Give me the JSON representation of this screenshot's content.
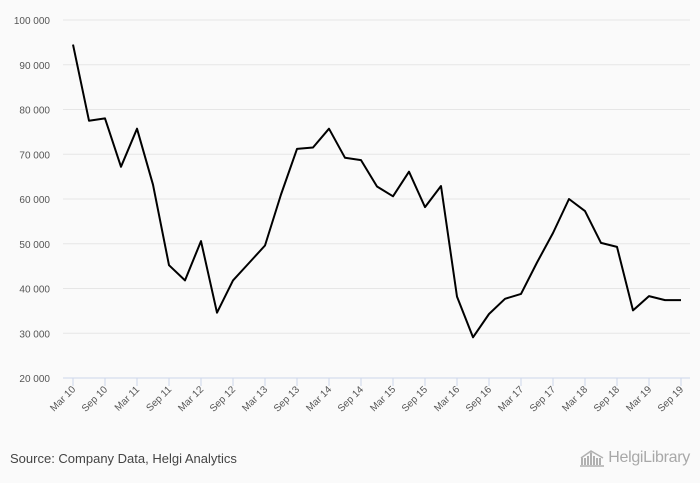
{
  "chart_data": {
    "type": "line",
    "title": "",
    "xlabel": "",
    "ylabel": "",
    "ylim": [
      20000,
      100000
    ],
    "yticks": [
      20000,
      30000,
      40000,
      50000,
      60000,
      70000,
      80000,
      90000,
      100000
    ],
    "ytick_labels": [
      "20 000",
      "30 000",
      "40 000",
      "50 000",
      "60 000",
      "70 000",
      "80 000",
      "90 000",
      "100 000"
    ],
    "x": [
      "Mar 10",
      "Jun 10",
      "Sep 10",
      "Dec 10",
      "Mar 11",
      "Jun 11",
      "Sep 11",
      "Dec 11",
      "Mar 12",
      "Jun 12",
      "Sep 12",
      "Dec 12",
      "Mar 13",
      "Jun 13",
      "Sep 13",
      "Dec 13",
      "Mar 14",
      "Jun 14",
      "Sep 14",
      "Dec 14",
      "Mar 15",
      "Jun 15",
      "Sep 15",
      "Dec 15",
      "Mar 16",
      "Jun 16",
      "Sep 16",
      "Dec 16",
      "Mar 17",
      "Jun 17",
      "Sep 17",
      "Dec 17",
      "Mar 18",
      "Jun 18",
      "Sep 18",
      "Dec 18",
      "Mar 19",
      "Jun 19",
      "Sep 19"
    ],
    "xtick_labels": [
      "Mar 10",
      "Sep 10",
      "Mar 11",
      "Sep 11",
      "Mar 12",
      "Sep 12",
      "Mar 13",
      "Sep 13",
      "Mar 14",
      "Sep 14",
      "Mar 15",
      "Sep 15",
      "Mar 16",
      "Sep 16",
      "Mar 17",
      "Sep 17",
      "Mar 18",
      "Sep 18",
      "Mar 19",
      "Sep 19"
    ],
    "series": [
      {
        "values": [
          94500,
          77500,
          78000,
          67200,
          75700,
          63200,
          45200,
          41800,
          50600,
          34600,
          41800,
          45700,
          49600,
          61000,
          71200,
          71500,
          75700,
          69200,
          68700,
          62800,
          60600,
          66100,
          58200,
          62900,
          38200,
          29100,
          34300,
          37700,
          38800,
          45800,
          52400,
          60000,
          57300,
          50200,
          49300,
          35100,
          38300,
          37400,
          37400
        ],
        "color": "#000000"
      }
    ],
    "grid": true,
    "legend": "none"
  },
  "footer": {
    "source": "Source: Company Data, Helgi Analytics",
    "brand": "HelgiLibrary",
    "brand_icon": "library-building-icon"
  }
}
